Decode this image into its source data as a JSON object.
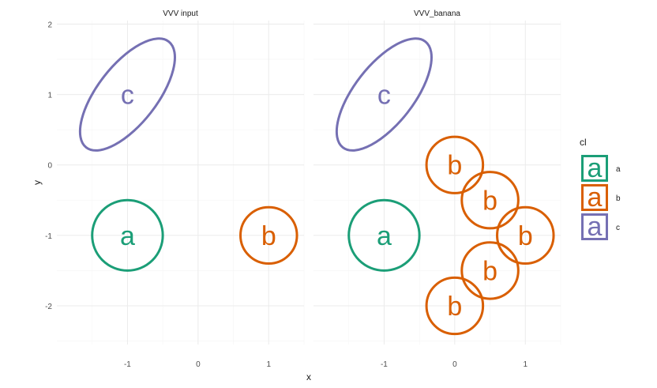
{
  "chart_data": {
    "type": "scatter",
    "xlabel": "x",
    "ylabel": "y",
    "xlim": [
      -2.0,
      1.5
    ],
    "ylim": [
      -2.55,
      2.05
    ],
    "x_ticks": [
      -1,
      0,
      1
    ],
    "y_ticks": [
      -2,
      -1,
      0,
      1,
      2
    ],
    "grid": true,
    "legend": {
      "title": "cl",
      "position": "right",
      "entries": [
        {
          "key": "a",
          "glyph": "a",
          "label": "a",
          "color": "#1b9e77"
        },
        {
          "key": "b",
          "glyph": "a",
          "label": "b",
          "color": "#d95f02"
        },
        {
          "key": "c",
          "glyph": "a",
          "label": "c",
          "color": "#7570b3"
        }
      ]
    },
    "panels": [
      {
        "title": "VVV input",
        "points": [
          {
            "cl": "a",
            "x": -1,
            "y": -1,
            "ellipse": {
              "rx": 0.5,
              "ry": 0.5,
              "angle": 0
            }
          },
          {
            "cl": "b",
            "x": 1,
            "y": -1,
            "ellipse": {
              "rx": 0.4,
              "ry": 0.4,
              "angle": 0
            }
          },
          {
            "cl": "c",
            "x": -1,
            "y": 1,
            "ellipse": {
              "rx": 0.95,
              "ry": 0.42,
              "angle": -52
            }
          }
        ]
      },
      {
        "title": "VVV_banana",
        "points": [
          {
            "cl": "a",
            "x": -1,
            "y": -1,
            "ellipse": {
              "rx": 0.5,
              "ry": 0.5,
              "angle": 0
            }
          },
          {
            "cl": "b",
            "x": 0,
            "y": 0,
            "ellipse": {
              "rx": 0.4,
              "ry": 0.4,
              "angle": 0
            }
          },
          {
            "cl": "b",
            "x": 0.5,
            "y": -0.5,
            "ellipse": {
              "rx": 0.4,
              "ry": 0.4,
              "angle": 0
            }
          },
          {
            "cl": "b",
            "x": 1,
            "y": -1,
            "ellipse": {
              "rx": 0.4,
              "ry": 0.4,
              "angle": 0
            }
          },
          {
            "cl": "b",
            "x": 0.5,
            "y": -1.5,
            "ellipse": {
              "rx": 0.4,
              "ry": 0.4,
              "angle": 0
            }
          },
          {
            "cl": "b",
            "x": 0,
            "y": -2,
            "ellipse": {
              "rx": 0.4,
              "ry": 0.4,
              "angle": 0
            }
          },
          {
            "cl": "c",
            "x": -1,
            "y": 1,
            "ellipse": {
              "rx": 0.95,
              "ry": 0.42,
              "angle": -52
            }
          }
        ]
      }
    ]
  }
}
